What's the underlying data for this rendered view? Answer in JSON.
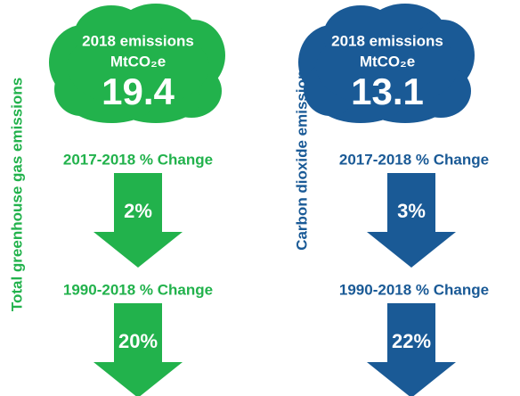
{
  "panels": [
    {
      "side_label": "Total greenhouse gas emissions",
      "cloud_title": "2018 emissions",
      "unit": "MtCO₂e",
      "value": "19.4",
      "changes": [
        {
          "label": "2017-2018 % Change",
          "value": "2%"
        },
        {
          "label": "1990-2018 % Change",
          "value": "20%"
        }
      ]
    },
    {
      "side_label": "Carbon dioxide emissions",
      "cloud_title": "2018 emissions",
      "unit": "MtCO₂e",
      "value": "13.1",
      "changes": [
        {
          "label": "2017-2018 % Change",
          "value": "3%"
        },
        {
          "label": "1990-2018 % Change",
          "value": "22%"
        }
      ]
    }
  ]
}
